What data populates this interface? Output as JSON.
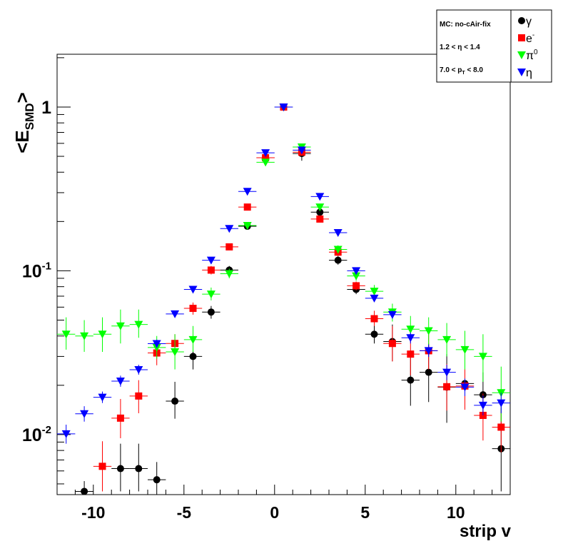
{
  "chart_data": {
    "type": "scatter",
    "title": "",
    "xlabel": "strip v",
    "ylabel": "<E_SMD>",
    "ylabel_main": "<E",
    "ylabel_sub": "SMD",
    "ylabel_close": ">",
    "xlim": [
      -12,
      13
    ],
    "ylim": [
      0.0043,
      2.1
    ],
    "yscale": "log",
    "x_ticks": [
      -10,
      -5,
      0,
      5,
      10
    ],
    "y_ticks": [
      {
        "value": 0.01,
        "base": "10",
        "exp": "-2"
      },
      {
        "value": 0.1,
        "base": "10",
        "exp": "-1"
      },
      {
        "value": 1,
        "base": "1",
        "exp": ""
      }
    ],
    "grid": false,
    "info_box": {
      "line1": "MC: no-cAir-fix",
      "line2": "1.2 < η < 1.4",
      "line3_main": "7.0 < p",
      "line3_sub": "T",
      "line3_rest": " < 8.0"
    },
    "legend_position": "top-right",
    "series": [
      {
        "name": "γ",
        "legend_label": "γ",
        "legend_sup": "",
        "marker": "circle",
        "color": "#000000",
        "points": [
          {
            "x": -10.5,
            "y": 0.0045,
            "lo": 0.0043,
            "hi": 0.0052
          },
          {
            "x": -8.5,
            "y": 0.0062,
            "lo": 0.0045,
            "hi": 0.0088
          },
          {
            "x": -7.5,
            "y": 0.0062,
            "lo": 0.0045,
            "hi": 0.0088
          },
          {
            "x": -6.5,
            "y": 0.0053,
            "lo": 0.0043,
            "hi": 0.0068
          },
          {
            "x": -5.5,
            "y": 0.016,
            "lo": 0.0125,
            "hi": 0.021
          },
          {
            "x": -4.5,
            "y": 0.03,
            "lo": 0.025,
            "hi": 0.036
          },
          {
            "x": -3.5,
            "y": 0.056,
            "lo": 0.051,
            "hi": 0.061
          },
          {
            "x": -2.5,
            "y": 0.101,
            "lo": 0.095,
            "hi": 0.107
          },
          {
            "x": -1.5,
            "y": 0.187,
            "lo": 0.181,
            "hi": 0.193
          },
          {
            "x": -0.5,
            "y": 0.49,
            "lo": 0.48,
            "hi": 0.5
          },
          {
            "x": 0.5,
            "y": 1.0,
            "lo": 0.99,
            "hi": 1.01
          },
          {
            "x": 1.5,
            "y": 0.52,
            "lo": 0.47,
            "hi": 0.56
          },
          {
            "x": 2.5,
            "y": 0.228,
            "lo": 0.215,
            "hi": 0.24
          },
          {
            "x": 3.5,
            "y": 0.116,
            "lo": 0.109,
            "hi": 0.123
          },
          {
            "x": 4.5,
            "y": 0.077,
            "lo": 0.072,
            "hi": 0.082
          },
          {
            "x": 5.5,
            "y": 0.041,
            "lo": 0.036,
            "hi": 0.047
          },
          {
            "x": 6.5,
            "y": 0.037,
            "lo": 0.028,
            "hi": 0.047
          },
          {
            "x": 7.5,
            "y": 0.0215,
            "lo": 0.015,
            "hi": 0.03
          },
          {
            "x": 8.5,
            "y": 0.024,
            "lo": 0.0158,
            "hi": 0.036
          },
          {
            "x": 9.5,
            "y": 0.0195,
            "lo": 0.0118,
            "hi": 0.031
          },
          {
            "x": 10.5,
            "y": 0.0205,
            "lo": 0.0142,
            "hi": 0.029
          },
          {
            "x": 11.5,
            "y": 0.0175,
            "lo": 0.0125,
            "hi": 0.024
          },
          {
            "x": 12.5,
            "y": 0.0082,
            "lo": 0.0045,
            "hi": 0.0145
          }
        ]
      },
      {
        "name": "e-",
        "legend_label": "e",
        "legend_sup": "-",
        "marker": "square",
        "color": "#ff0000",
        "points": [
          {
            "x": -9.5,
            "y": 0.0064,
            "lo": 0.0045,
            "hi": 0.0091
          },
          {
            "x": -8.5,
            "y": 0.0126,
            "lo": 0.0095,
            "hi": 0.0165
          },
          {
            "x": -7.5,
            "y": 0.0172,
            "lo": 0.0135,
            "hi": 0.0215
          },
          {
            "x": -6.5,
            "y": 0.0315,
            "lo": 0.0265,
            "hi": 0.037
          },
          {
            "x": -5.5,
            "y": 0.036,
            "lo": 0.031,
            "hi": 0.041
          },
          {
            "x": -4.5,
            "y": 0.059,
            "lo": 0.054,
            "hi": 0.064
          },
          {
            "x": -3.5,
            "y": 0.101,
            "lo": 0.095,
            "hi": 0.107
          },
          {
            "x": -2.5,
            "y": 0.14,
            "lo": 0.134,
            "hi": 0.146
          },
          {
            "x": -1.5,
            "y": 0.245,
            "lo": 0.238,
            "hi": 0.252
          },
          {
            "x": -0.5,
            "y": 0.49,
            "lo": 0.48,
            "hi": 0.5
          },
          {
            "x": 0.5,
            "y": 1.0,
            "lo": 0.99,
            "hi": 1.01
          },
          {
            "x": 1.5,
            "y": 0.53,
            "lo": 0.52,
            "hi": 0.54
          },
          {
            "x": 2.5,
            "y": 0.207,
            "lo": 0.198,
            "hi": 0.216
          },
          {
            "x": 3.5,
            "y": 0.13,
            "lo": 0.123,
            "hi": 0.137
          },
          {
            "x": 4.5,
            "y": 0.081,
            "lo": 0.076,
            "hi": 0.086
          },
          {
            "x": 5.5,
            "y": 0.051,
            "lo": 0.046,
            "hi": 0.057
          },
          {
            "x": 6.5,
            "y": 0.036,
            "lo": 0.028,
            "hi": 0.046
          },
          {
            "x": 7.5,
            "y": 0.031,
            "lo": 0.023,
            "hi": 0.04
          },
          {
            "x": 8.5,
            "y": 0.0325,
            "lo": 0.025,
            "hi": 0.042
          },
          {
            "x": 9.5,
            "y": 0.0196,
            "lo": 0.014,
            "hi": 0.027
          },
          {
            "x": 10.5,
            "y": 0.0198,
            "lo": 0.0142,
            "hi": 0.027
          },
          {
            "x": 11.5,
            "y": 0.0131,
            "lo": 0.0092,
            "hi": 0.0178
          },
          {
            "x": 12.5,
            "y": 0.0111,
            "lo": 0.0078,
            "hi": 0.0151
          }
        ]
      },
      {
        "name": "π0",
        "legend_label": "π",
        "legend_sup": "0",
        "marker": "triangle-down",
        "color": "#00ff00",
        "points": [
          {
            "x": -11.5,
            "y": 0.041,
            "lo": 0.033,
            "hi": 0.052
          },
          {
            "x": -10.5,
            "y": 0.04,
            "lo": 0.032,
            "hi": 0.05
          },
          {
            "x": -9.5,
            "y": 0.041,
            "lo": 0.032,
            "hi": 0.052
          },
          {
            "x": -8.5,
            "y": 0.046,
            "lo": 0.036,
            "hi": 0.058
          },
          {
            "x": -7.5,
            "y": 0.047,
            "lo": 0.039,
            "hi": 0.058
          },
          {
            "x": -6.5,
            "y": 0.034,
            "lo": 0.029,
            "hi": 0.04
          },
          {
            "x": -5.5,
            "y": 0.032,
            "lo": 0.025,
            "hi": 0.041
          },
          {
            "x": -4.5,
            "y": 0.038,
            "lo": 0.032,
            "hi": 0.046
          },
          {
            "x": -3.5,
            "y": 0.072,
            "lo": 0.066,
            "hi": 0.079
          },
          {
            "x": -2.5,
            "y": 0.096,
            "lo": 0.09,
            "hi": 0.103
          },
          {
            "x": -1.5,
            "y": 0.189,
            "lo": 0.182,
            "hi": 0.197
          },
          {
            "x": -0.5,
            "y": 0.46,
            "lo": 0.45,
            "hi": 0.47
          },
          {
            "x": 0.5,
            "y": 1.0,
            "lo": 0.99,
            "hi": 1.01
          },
          {
            "x": 1.5,
            "y": 0.57,
            "lo": 0.56,
            "hi": 0.58
          },
          {
            "x": 2.5,
            "y": 0.245,
            "lo": 0.237,
            "hi": 0.253
          },
          {
            "x": 3.5,
            "y": 0.135,
            "lo": 0.128,
            "hi": 0.143
          },
          {
            "x": 4.5,
            "y": 0.093,
            "lo": 0.087,
            "hi": 0.1
          },
          {
            "x": 5.5,
            "y": 0.075,
            "lo": 0.069,
            "hi": 0.082
          },
          {
            "x": 6.5,
            "y": 0.056,
            "lo": 0.049,
            "hi": 0.063
          },
          {
            "x": 7.5,
            "y": 0.044,
            "lo": 0.037,
            "hi": 0.053
          },
          {
            "x": 8.5,
            "y": 0.043,
            "lo": 0.035,
            "hi": 0.052
          },
          {
            "x": 9.5,
            "y": 0.038,
            "lo": 0.03,
            "hi": 0.048
          },
          {
            "x": 10.5,
            "y": 0.033,
            "lo": 0.025,
            "hi": 0.043
          },
          {
            "x": 11.5,
            "y": 0.03,
            "lo": 0.021,
            "hi": 0.041
          },
          {
            "x": 12.5,
            "y": 0.018,
            "lo": 0.012,
            "hi": 0.026
          }
        ]
      },
      {
        "name": "η",
        "legend_label": "η",
        "legend_sup": "",
        "marker": "triangle-down",
        "color": "#0000ff",
        "points": [
          {
            "x": -11.5,
            "y": 0.0101,
            "lo": 0.0088,
            "hi": 0.0115
          },
          {
            "x": -10.5,
            "y": 0.0134,
            "lo": 0.012,
            "hi": 0.0149
          },
          {
            "x": -9.5,
            "y": 0.0169,
            "lo": 0.0156,
            "hi": 0.0183
          },
          {
            "x": -8.5,
            "y": 0.0212,
            "lo": 0.0196,
            "hi": 0.0229
          },
          {
            "x": -7.5,
            "y": 0.0249,
            "lo": 0.0232,
            "hi": 0.0267
          },
          {
            "x": -6.5,
            "y": 0.0359,
            "lo": 0.0338,
            "hi": 0.038
          },
          {
            "x": -5.5,
            "y": 0.0545,
            "lo": 0.052,
            "hi": 0.057
          },
          {
            "x": -4.5,
            "y": 0.077,
            "lo": 0.074,
            "hi": 0.08
          },
          {
            "x": -3.5,
            "y": 0.116,
            "lo": 0.112,
            "hi": 0.12
          },
          {
            "x": -2.5,
            "y": 0.181,
            "lo": 0.177,
            "hi": 0.185
          },
          {
            "x": -1.5,
            "y": 0.305,
            "lo": 0.3,
            "hi": 0.31
          },
          {
            "x": -0.5,
            "y": 0.525,
            "lo": 0.52,
            "hi": 0.53
          },
          {
            "x": 0.5,
            "y": 1.0,
            "lo": 0.99,
            "hi": 1.01
          },
          {
            "x": 1.5,
            "y": 0.545,
            "lo": 0.54,
            "hi": 0.55
          },
          {
            "x": 2.5,
            "y": 0.284,
            "lo": 0.279,
            "hi": 0.289
          },
          {
            "x": 3.5,
            "y": 0.171,
            "lo": 0.167,
            "hi": 0.175
          },
          {
            "x": 4.5,
            "y": 0.1,
            "lo": 0.097,
            "hi": 0.103
          },
          {
            "x": 5.5,
            "y": 0.068,
            "lo": 0.065,
            "hi": 0.071
          },
          {
            "x": 6.5,
            "y": 0.054,
            "lo": 0.051,
            "hi": 0.057
          },
          {
            "x": 7.5,
            "y": 0.039,
            "lo": 0.036,
            "hi": 0.042
          },
          {
            "x": 8.5,
            "y": 0.0325,
            "lo": 0.0298,
            "hi": 0.0355
          },
          {
            "x": 9.5,
            "y": 0.024,
            "lo": 0.0215,
            "hi": 0.0267
          },
          {
            "x": 10.5,
            "y": 0.0195,
            "lo": 0.0172,
            "hi": 0.022
          },
          {
            "x": 11.5,
            "y": 0.0151,
            "lo": 0.0131,
            "hi": 0.0173
          },
          {
            "x": 12.5,
            "y": 0.0156,
            "lo": 0.0135,
            "hi": 0.018
          }
        ]
      }
    ]
  }
}
